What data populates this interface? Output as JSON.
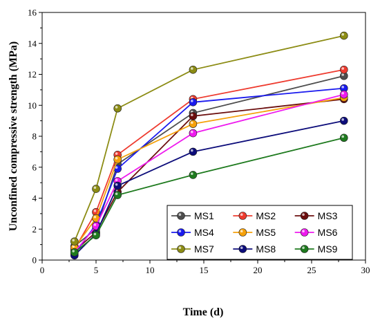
{
  "chart_data": {
    "type": "line",
    "xlabel": "Time (d)",
    "ylabel": "Unconfined compressive strength (MPa)",
    "xlim": [
      0,
      30
    ],
    "ylim": [
      0,
      16
    ],
    "xticks": [
      0,
      5,
      10,
      15,
      20,
      25,
      30
    ],
    "yticks": [
      0,
      2,
      4,
      6,
      8,
      10,
      12,
      14,
      16
    ],
    "x": [
      3,
      5,
      7,
      14,
      28
    ],
    "legend_position": "bottom-right",
    "legend_columns": 3,
    "grid": false,
    "series": [
      {
        "name": "MS1",
        "color": "#4d4d4d",
        "values": [
          0.9,
          2.0,
          6.2,
          9.5,
          11.9
        ]
      },
      {
        "name": "MS2",
        "color": "#ee3b2f",
        "values": [
          0.7,
          3.1,
          6.8,
          10.4,
          12.3
        ]
      },
      {
        "name": "MS3",
        "color": "#6b0e0e",
        "values": [
          0.6,
          1.8,
          4.4,
          9.3,
          10.4
        ]
      },
      {
        "name": "MS4",
        "color": "#1a1aee",
        "values": [
          0.4,
          2.3,
          5.9,
          10.2,
          11.1
        ]
      },
      {
        "name": "MS5",
        "color": "#f5a10b",
        "values": [
          0.8,
          2.7,
          6.5,
          8.8,
          10.5
        ]
      },
      {
        "name": "MS6",
        "color": "#ee1aee",
        "values": [
          0.5,
          2.2,
          5.1,
          8.2,
          10.7
        ]
      },
      {
        "name": "MS7",
        "color": "#8c8c14",
        "values": [
          1.2,
          4.6,
          9.8,
          12.3,
          14.5
        ]
      },
      {
        "name": "MS8",
        "color": "#0c0c7a",
        "values": [
          0.3,
          1.7,
          4.8,
          7.0,
          9.0
        ]
      },
      {
        "name": "MS9",
        "color": "#1e7a1e",
        "values": [
          0.5,
          1.6,
          4.2,
          5.5,
          7.9
        ]
      }
    ]
  }
}
